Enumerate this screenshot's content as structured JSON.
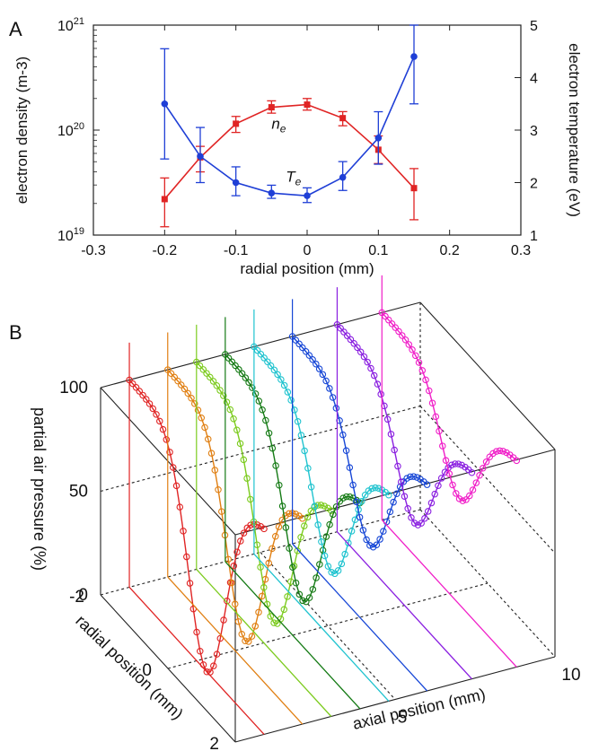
{
  "chart_data": [
    {
      "panel": "A",
      "type": "line",
      "xlabel": "radial position (mm)",
      "ylabel": "electron density (m-3)",
      "y2label": "electron temperature (eV)",
      "xlim": [
        -0.3,
        0.3
      ],
      "xticks": [
        "-0.3",
        "-0.2",
        "-0.1",
        "0",
        "0.1",
        "0.2",
        "0.3"
      ],
      "ylim": [
        1e+19,
        1e+21
      ],
      "yscale": "log",
      "yticks": [
        "10",
        "10",
        "10"
      ],
      "ytick_exponents": [
        "19",
        "20",
        "21"
      ],
      "y2lim": [
        1,
        5
      ],
      "y2ticks": [
        "1",
        "2",
        "3",
        "4",
        "5"
      ],
      "series": [
        {
          "name": "n",
          "name_subscript": "e",
          "axis": "left",
          "color": "#e02424",
          "marker": "square",
          "x": [
            -0.2,
            -0.15,
            -0.1,
            -0.05,
            0.0,
            0.05,
            0.1,
            0.15
          ],
          "y": [
            2.2e+19,
            5.5e+19,
            1.15e+20,
            1.65e+20,
            1.75e+20,
            1.3e+20,
            6.5e+19,
            2.8e+19
          ],
          "err_low": [
            1.2e+19,
            4e+19,
            9.5e+19,
            1.45e+20,
            1.55e+20,
            1.1e+20,
            4.8e+19,
            1.4e+19
          ],
          "err_high": [
            3.5e+19,
            7e+19,
            1.35e+20,
            1.9e+20,
            2e+20,
            1.5e+20,
            8.8e+19,
            4.3e+19
          ]
        },
        {
          "name": "T",
          "name_subscript": "e",
          "axis": "right",
          "color": "#1f3fd6",
          "marker": "circle",
          "x": [
            -0.2,
            -0.15,
            -0.1,
            -0.05,
            0.0,
            0.05,
            0.1,
            0.15
          ],
          "y": [
            3.5,
            2.5,
            2.0,
            1.8,
            1.75,
            2.1,
            2.85,
            4.4
          ],
          "err_low": [
            2.45,
            2.0,
            1.75,
            1.7,
            1.62,
            1.85,
            2.35,
            3.5
          ],
          "err_high": [
            4.55,
            3.05,
            2.3,
            1.95,
            1.9,
            2.4,
            3.35,
            5.0
          ]
        }
      ],
      "annotations": [
        {
          "text": "n",
          "subscript": "e",
          "x": -0.05,
          "y": 1.2e+20
        },
        {
          "text": "T",
          "subscript": "e",
          "x": -0.03,
          "y": 2.15,
          "axis": "right"
        }
      ]
    },
    {
      "panel": "B",
      "type": "line",
      "projection": "3d",
      "xlabel": "axial position (mm)",
      "ylabel": "radial position (mm)",
      "zlabel": "partial air pressure (%)",
      "xlim": [
        0,
        10
      ],
      "xticks": [
        "0",
        "5",
        "10"
      ],
      "ylim": [
        -2,
        2
      ],
      "yticks": [
        "-2",
        "0",
        "2"
      ],
      "zlim": [
        0,
        100
      ],
      "zticks": [
        "0",
        "50",
        "100"
      ],
      "series": [
        {
          "axial": 0.9,
          "color": "#e02424",
          "min": 0
        },
        {
          "axial": 2.1,
          "color": "#e07f12",
          "min": 10
        },
        {
          "axial": 3.0,
          "color": "#7ccb1e",
          "min": 15
        },
        {
          "axial": 3.9,
          "color": "#147a14",
          "min": 22
        },
        {
          "axial": 4.8,
          "color": "#1fc3cf",
          "min": 32
        },
        {
          "axial": 6.0,
          "color": "#1646d6",
          "min": 40
        },
        {
          "axial": 7.4,
          "color": "#8a1fe0",
          "min": 45
        },
        {
          "axial": 8.8,
          "color": "#f01ec8",
          "min": 51
        }
      ]
    }
  ],
  "panels": {
    "a_label": "A",
    "b_label": "B"
  }
}
